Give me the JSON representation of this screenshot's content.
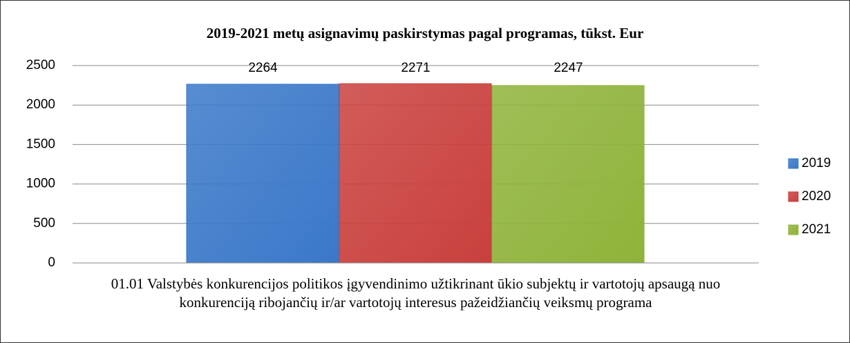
{
  "chart_data": {
    "type": "bar",
    "title": "2019-2021 metų asignavimų paskirstymas pagal programas, tūkst. Eur",
    "categories": [
      "01.01 Valstybės konkurencijos politikos įgyvendinimo užtikrinant ūkio subjektų ir vartotojų apsaugą nuo konkurenciją ribojančių ir/ar vartotojų interesus pažeidžiančių veiksmų programa"
    ],
    "series": [
      {
        "name": "2019",
        "color": "#3a78c9",
        "values": [
          2264
        ]
      },
      {
        "name": "2020",
        "color": "#c9403d",
        "values": [
          2271
        ]
      },
      {
        "name": "2021",
        "color": "#8fb33a",
        "values": [
          2247
        ]
      }
    ],
    "ylim": [
      0,
      2500
    ],
    "yticks": [
      0,
      500,
      1000,
      1500,
      2000,
      2500
    ],
    "grid": true,
    "legend": "right"
  }
}
